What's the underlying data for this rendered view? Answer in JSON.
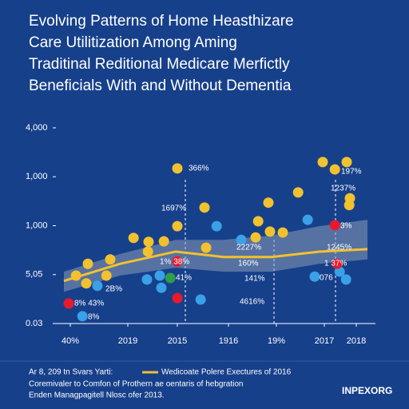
{
  "chart_data": {
    "type": "scatter",
    "title": [
      "Evolving Patterns of Home Heasthizare",
      "Care Utilitization Among Aming",
      "Traditinal Reditional Medicare Merfictly",
      "Beneficials With and Without Dementia"
    ],
    "xlim": [
      0,
      10
    ],
    "ylim": [
      0,
      4
    ],
    "xticks": [
      {
        "value": 0.45,
        "label": "40%"
      },
      {
        "value": 2.25,
        "label": "2019"
      },
      {
        "value": 3.8,
        "label": "2015"
      },
      {
        "value": 5.4,
        "label": "1916"
      },
      {
        "value": 6.9,
        "label": "19%"
      },
      {
        "value": 8.4,
        "label": "2017"
      },
      {
        "value": 9.4,
        "label": "2018"
      }
    ],
    "yticks": [
      {
        "value": 0,
        "label": "0.03"
      },
      {
        "value": 1,
        "label": "5,05"
      },
      {
        "value": 2,
        "label": "1,000"
      },
      {
        "value": 3,
        "label": "1,000"
      },
      {
        "value": 4,
        "label": "4,000"
      }
    ],
    "series": [
      {
        "color": "#f2c12e",
        "x": [
          0.63,
          1.0,
          0.95,
          1.58,
          1.7,
          2.43,
          2.9,
          2.88,
          3.38,
          3.8,
          3.8,
          4.65,
          4.7,
          6.33,
          6.25,
          6.65,
          6.7,
          7.1,
          7.58,
          8.35,
          8.73,
          9.1,
          9.2,
          9.18
        ],
        "values": [
          0.98,
          1.22,
          0.82,
          0.98,
          1.31,
          1.75,
          1.67,
          1.47,
          1.68,
          1.99,
          3.17,
          2.37,
          1.55,
          2.09,
          1.76,
          2.47,
          1.88,
          1.86,
          2.68,
          3.3,
          3.15,
          3.3,
          2.56,
          2.42
        ]
      },
      {
        "color": "#3aa0e8",
        "x": [
          1.3,
          0.83,
          2.85,
          3.25,
          3.3,
          4.53,
          5.03,
          5.8,
          7.88,
          8.1,
          8.88,
          9.08
        ],
        "values": [
          0.77,
          0.15,
          0.9,
          0.98,
          0.73,
          0.49,
          1.99,
          1.71,
          2.12,
          0.96,
          1.06,
          0.9
        ]
      },
      {
        "color": "#e8192c",
        "x": [
          0.4,
          3.8,
          3.8,
          8.73,
          8.8
        ],
        "values": [
          0.41,
          0.52,
          1.27,
          2.01,
          1.22
        ]
      },
      {
        "color": "#2e9e4a",
        "x": [
          3.58
        ],
        "values": [
          0.93
        ]
      }
    ],
    "trend": {
      "color": "#f2c12e",
      "band_color": "#8a9bb8",
      "x": [
        0.25,
        2,
        3.75,
        5.25,
        6.75,
        8.25,
        9.75
      ],
      "values": [
        0.87,
        1.22,
        1.47,
        1.36,
        1.36,
        1.47,
        1.52
      ],
      "upper": [
        1.06,
        1.42,
        1.71,
        1.71,
        1.8,
        1.99,
        2.12
      ],
      "lower": [
        0.65,
        0.98,
        1.14,
        1.06,
        1.06,
        1.22,
        1.31
      ]
    },
    "annotations": [
      "366%",
      "1697%",
      "1% 38%",
      "41%",
      "2227%",
      "160%",
      "141%",
      "4616%",
      "2B%",
      "8% 43%",
      "8%",
      "197%",
      "1237%",
      "3%",
      "1245%",
      "1 37%",
      "076"
    ],
    "legend_label": "Wedicoate Polere Exectures of 2016",
    "footnotes": [
      "Ar 8, 209 tn Svars Yarti:",
      "Coremivaler to Comfon of Prothern ae oentaris of hebgration",
      "Enden Managpagitell Nlosc ofer 2013."
    ],
    "source": "INPEXORG"
  }
}
